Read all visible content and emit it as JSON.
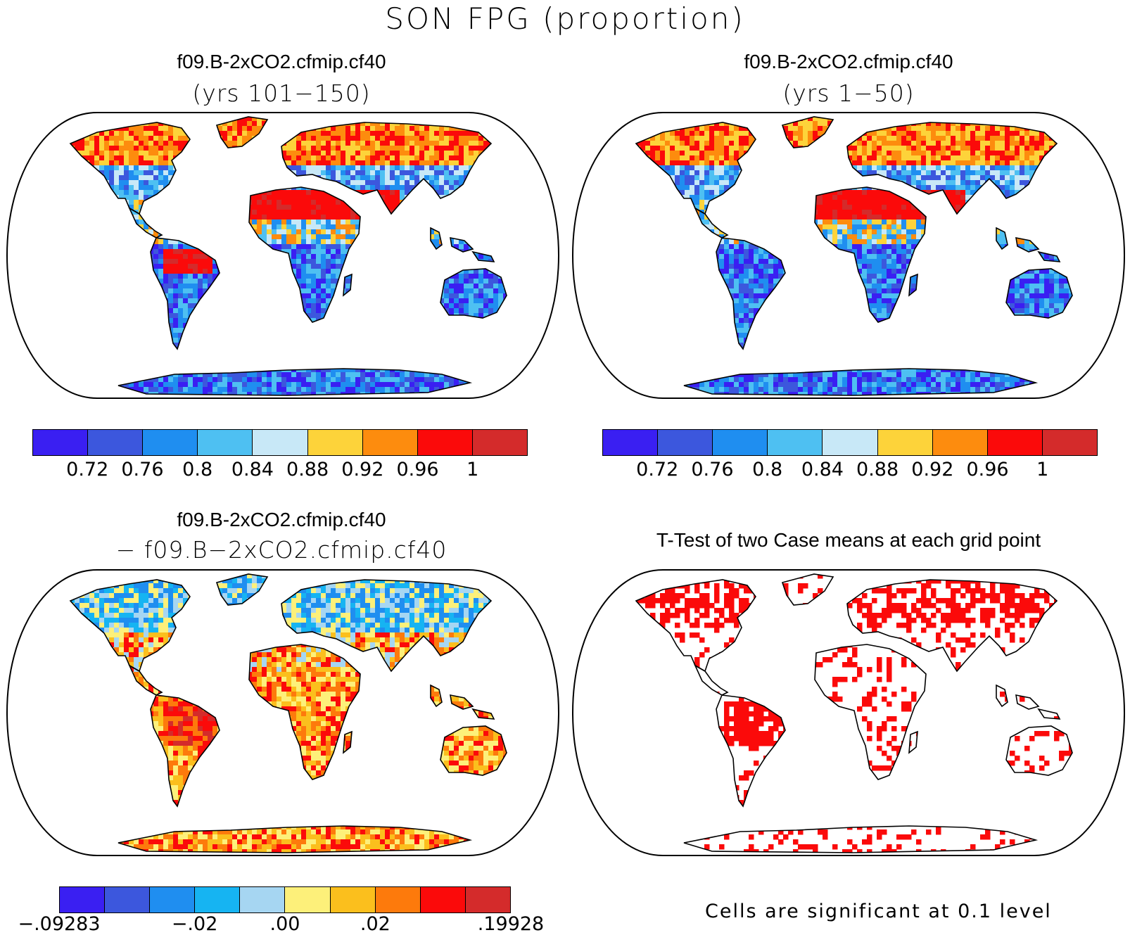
{
  "title": "SON FPG (proportion)",
  "panels": [
    {
      "id": "top-left",
      "title": "f09.B-2xCO2.cfmip.cf40",
      "subtitle": "(yrs 101−150)",
      "palette": "abs"
    },
    {
      "id": "top-right",
      "title": "f09.B-2xCO2.cfmip.cf40",
      "subtitle": "(yrs 1−50)",
      "palette": "abs"
    },
    {
      "id": "bottom-left",
      "title": "f09.B-2xCO2.cfmip.cf40",
      "subtitle": "− f09.B−2xCO2.cfmip.cf40",
      "palette": "diff"
    },
    {
      "id": "bottom-right",
      "title": "T-Test of two Case means at each grid point",
      "subtitle": "",
      "palette": "ttest"
    }
  ],
  "colorbar_abs": {
    "colors": [
      "#3a1ff2",
      "#3c57dd",
      "#1f8ef0",
      "#4ec0f2",
      "#c8e8f7",
      "#fdd33a",
      "#fd8c0e",
      "#fb0a0a",
      "#d42b2b"
    ],
    "labels": [
      "0.72",
      "0.76",
      "0.8",
      "0.84",
      "0.88",
      "0.92",
      "0.96",
      "1"
    ]
  },
  "colorbar_diff": {
    "colors": [
      "#3a1ff2",
      "#3c57dd",
      "#1f8ef0",
      "#16b4f2",
      "#a6d6f2",
      "#fdf07a",
      "#fbbf1d",
      "#fd7a0c",
      "#fb0a0a",
      "#d42b2b"
    ],
    "labels": [
      "−.09283",
      "−.02",
      ".00",
      ".02",
      ".19928"
    ]
  },
  "ttest_note": "Cells are significant at 0.1 level",
  "colors": {
    "significant": "#fb0a0a",
    "coast": "#000000"
  }
}
